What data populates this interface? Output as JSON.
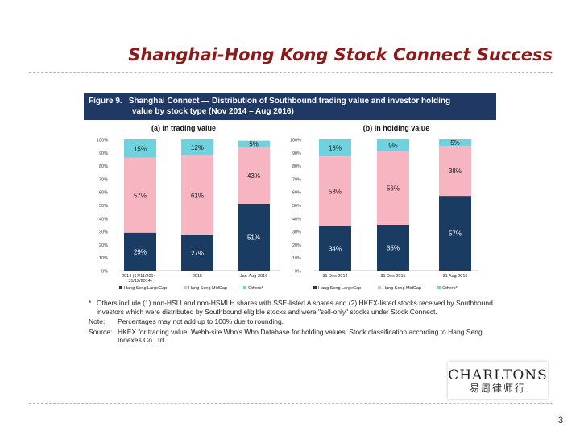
{
  "slide": {
    "title": "Shanghai-Hong Kong Stock Connect Success",
    "page_number": "3"
  },
  "figure": {
    "label": "Figure 9.",
    "title_line1": "Shanghai Connect — Distribution of Southbound trading value and investor holding",
    "title_line2": "value by stock type (Nov 2014 – Aug 2016)",
    "header_color": "#1f3864"
  },
  "colors": {
    "large_cap": "#1a3c63",
    "mid_cap": "#f6b5c0",
    "others": "#6fd3df"
  },
  "legend": [
    "Hang Seng LargeCap",
    "Hang Seng MidCap",
    "Others*"
  ],
  "chart_data": [
    {
      "type": "bar",
      "stacked": true,
      "title": "(a) In trading value",
      "categories": [
        "2014 (17/11/2014 - 31/12/2014)",
        "2015",
        "Jan-Aug 2016"
      ],
      "series": [
        {
          "name": "Hang Seng LargeCap",
          "values": [
            29,
            27,
            51
          ],
          "labels": [
            "29%",
            "27%",
            "51%"
          ]
        },
        {
          "name": "Hang Seng MidCap",
          "values": [
            57,
            61,
            43
          ],
          "labels": [
            "57%",
            "61%",
            "43%"
          ]
        },
        {
          "name": "Others*",
          "values": [
            15,
            12,
            5
          ],
          "labels": [
            "15%",
            "12%",
            "5%"
          ]
        }
      ],
      "ylim": [
        0,
        100
      ],
      "yticks": [
        "0%",
        "10%",
        "20%",
        "30%",
        "40%",
        "50%",
        "60%",
        "70%",
        "80%",
        "90%",
        "100%"
      ],
      "grid": false,
      "legend": "bottom"
    },
    {
      "type": "bar",
      "stacked": true,
      "title": "(b) In holding value",
      "categories": [
        "31 Dec 2014",
        "31 Dec 2015",
        "31 Aug 2016"
      ],
      "series": [
        {
          "name": "Hang Seng LargeCap",
          "values": [
            34,
            35,
            57
          ],
          "labels": [
            "34%",
            "35%",
            "57%"
          ]
        },
        {
          "name": "Hang Seng MidCap",
          "values": [
            53,
            56,
            38
          ],
          "labels": [
            "53%",
            "56%",
            "38%"
          ]
        },
        {
          "name": "Others*",
          "values": [
            13,
            9,
            5
          ],
          "labels": [
            "13%",
            "9%",
            "5%"
          ]
        }
      ],
      "ylim": [
        0,
        100
      ],
      "yticks": [
        "0%",
        "10%",
        "20%",
        "30%",
        "40%",
        "50%",
        "60%",
        "70%",
        "80%",
        "90%",
        "100%"
      ],
      "grid": false,
      "legend": "bottom"
    }
  ],
  "notes": {
    "star_mark": "*",
    "star": "Others include (1) non-HSLI and non-HSMI H shares with SSE-listed A shares and (2) HKEX-listed stocks received by Southbound investors which were distributed by Southbound eligible stocks and were \"sell-only\" stocks under Stock Connect.",
    "note_label": "Note:",
    "note": "Percentages may not add up to 100% due to rounding.",
    "source_label": "Source:",
    "source": "HKEX for trading value; Webb-site Who's Who Database for holding values. Stock classification according to Hang Seng Indexes Co Ltd."
  },
  "logo": {
    "name": "CHARLTONS",
    "chinese": "易周律师行"
  }
}
